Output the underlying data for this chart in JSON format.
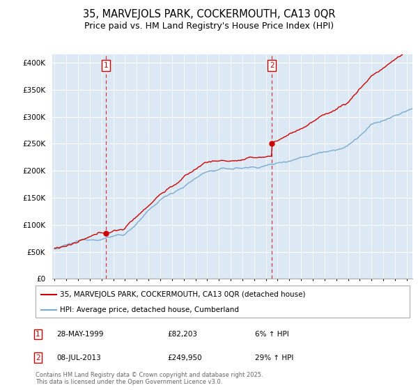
{
  "title": "35, MARVEJOLS PARK, COCKERMOUTH, CA13 0QR",
  "subtitle": "Price paid vs. HM Land Registry's House Price Index (HPI)",
  "title_fontsize": 10.5,
  "subtitle_fontsize": 9,
  "ylabel_ticks": [
    "£0",
    "£50K",
    "£100K",
    "£150K",
    "£200K",
    "£250K",
    "£300K",
    "£350K",
    "£400K"
  ],
  "ytick_vals": [
    0,
    50000,
    100000,
    150000,
    200000,
    250000,
    300000,
    350000,
    400000
  ],
  "ylim": [
    0,
    415000
  ],
  "xlim_start": 1994.8,
  "xlim_end": 2025.5,
  "red_line_color": "#cc0000",
  "blue_line_color": "#7aabcf",
  "plot_bg_color": "#dce9f5",
  "grid_color": "#ffffff",
  "background_color": "#ffffff",
  "purchase1_x": 1999.38,
  "purchase1_label": "1",
  "purchase1_date": "28-MAY-1999",
  "purchase1_price": "£82,203",
  "purchase1_hpi": "6% ↑ HPI",
  "purchase1_val": 82203,
  "purchase2_x": 2013.52,
  "purchase2_label": "2",
  "purchase2_date": "08-JUL-2013",
  "purchase2_price": "£249,950",
  "purchase2_hpi": "29% ↑ HPI",
  "purchase2_val": 249950,
  "legend_line1": "35, MARVEJOLS PARK, COCKERMOUTH, CA13 0QR (detached house)",
  "legend_line2": "HPI: Average price, detached house, Cumberland",
  "footnote": "Contains HM Land Registry data © Crown copyright and database right 2025.\nThis data is licensed under the Open Government Licence v3.0."
}
